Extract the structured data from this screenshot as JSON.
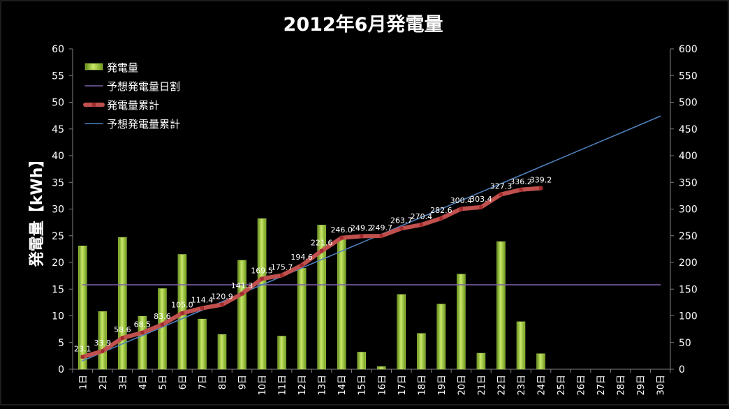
{
  "chart_data": {
    "type": "bar",
    "title": "2012年6月発電量",
    "ylabel": "発電量【kWh】",
    "ylim": [
      0,
      60
    ],
    "y2lim": [
      0,
      600
    ],
    "yticks": [
      "0",
      "5",
      "10",
      "15",
      "20",
      "25",
      "30",
      "35",
      "40",
      "45",
      "50",
      "55",
      "60"
    ],
    "y2ticks": [
      "0",
      "50",
      "100",
      "150",
      "200",
      "250",
      "300",
      "350",
      "400",
      "450",
      "500",
      "550",
      "600"
    ],
    "grid": false,
    "legend_position": "top-left",
    "categories": [
      "1日",
      "2日",
      "3日",
      "4日",
      "5日",
      "6日",
      "7日",
      "8日",
      "9日",
      "10日",
      "11日",
      "12日",
      "13日",
      "14日",
      "15日",
      "16日",
      "17日",
      "18日",
      "19日",
      "20日",
      "21日",
      "22日",
      "23日",
      "24日",
      "25日",
      "26日",
      "27日",
      "28日",
      "29日",
      "30日"
    ],
    "series": [
      {
        "name": "発電量",
        "kind": "bar",
        "axis": "left",
        "color": "#8dbb2f",
        "values": [
          23.1,
          10.8,
          24.7,
          9.9,
          15.1,
          21.5,
          9.4,
          6.5,
          20.4,
          28.2,
          6.2,
          18.9,
          27.0,
          24.4,
          3.2,
          0.5,
          14.0,
          6.7,
          12.2,
          17.8,
          3.0,
          23.9,
          8.9,
          2.9,
          null,
          null,
          null,
          null,
          null,
          null
        ]
      },
      {
        "name": "予想発電量日割",
        "kind": "line",
        "axis": "left",
        "color": "#7d5fa8",
        "values": [
          15.8,
          15.8,
          15.8,
          15.8,
          15.8,
          15.8,
          15.8,
          15.8,
          15.8,
          15.8,
          15.8,
          15.8,
          15.8,
          15.8,
          15.8,
          15.8,
          15.8,
          15.8,
          15.8,
          15.8,
          15.8,
          15.8,
          15.8,
          15.8,
          15.8,
          15.8,
          15.8,
          15.8,
          15.8,
          15.8
        ]
      },
      {
        "name": "発電量累計",
        "kind": "line",
        "axis": "right",
        "color": "#c0504d",
        "values": [
          23.1,
          33.9,
          58.6,
          68.5,
          83.6,
          105.0,
          114.4,
          120.9,
          141.3,
          169.5,
          175.7,
          194.6,
          221.6,
          246.0,
          249.2,
          249.7,
          263.7,
          270.4,
          282.6,
          300.4,
          303.4,
          327.3,
          336.2,
          339.2,
          null,
          null,
          null,
          null,
          null,
          null
        ],
        "data_labels": [
          "23.1",
          "33.9",
          "58.6",
          "68.5",
          "83.6",
          "105.0",
          "114.4",
          "120.9",
          "141.3",
          "169.5",
          "175.7",
          "194.6",
          "221.6",
          "246.0",
          "249.2",
          "249.7",
          "263.7",
          "270.4",
          "282.6",
          "300.4",
          "303.4",
          "327.3",
          "336.2",
          "339.2"
        ]
      },
      {
        "name": "予想発電量累計",
        "kind": "line",
        "axis": "right",
        "color": "#4f81bd",
        "values": [
          15.8,
          31.6,
          47.4,
          63.2,
          79.0,
          94.8,
          110.6,
          126.4,
          142.2,
          158.0,
          173.8,
          189.6,
          205.4,
          221.2,
          237.0,
          252.8,
          268.6,
          284.4,
          300.2,
          316.0,
          331.8,
          347.6,
          363.4,
          379.2,
          395.0,
          410.8,
          426.6,
          442.4,
          458.2,
          474.0
        ]
      }
    ]
  }
}
